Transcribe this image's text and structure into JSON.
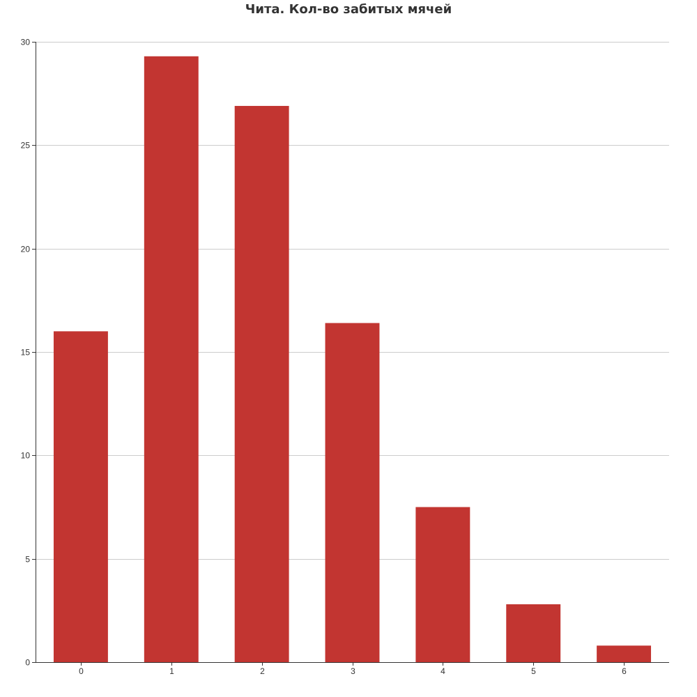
{
  "chart_data": {
    "type": "bar",
    "title": "Чита. Кол-во забитых мячей",
    "categories": [
      "0",
      "1",
      "2",
      "3",
      "4",
      "5",
      "6"
    ],
    "values": [
      16.0,
      29.3,
      26.9,
      16.4,
      7.5,
      2.8,
      0.8
    ],
    "xlabel": "",
    "ylabel": "",
    "ylim": [
      0,
      30
    ],
    "yticks": [
      0,
      5,
      10,
      15,
      20,
      25,
      30
    ],
    "grid": true,
    "bar_color": "#c23531"
  }
}
